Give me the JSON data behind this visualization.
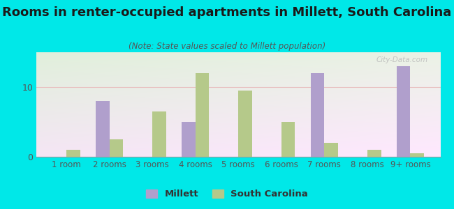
{
  "title": "Rooms in renter-occupied apartments in Millett, South Carolina",
  "subtitle": "(Note: State values scaled to Millett population)",
  "categories": [
    "1 room",
    "2 rooms",
    "3 rooms",
    "4 rooms",
    "5 rooms",
    "6 rooms",
    "7 rooms",
    "8 rooms",
    "9+ rooms"
  ],
  "millett_values": [
    0,
    8,
    0,
    5,
    0,
    0,
    12,
    0,
    13
  ],
  "sc_values": [
    1,
    2.5,
    6.5,
    12,
    9.5,
    5,
    2,
    1,
    0.5
  ],
  "millett_color": "#b09fcc",
  "sc_color": "#b5c98a",
  "background_outer": "#00e8e8",
  "ylim": [
    0,
    15
  ],
  "yticks": [
    0,
    10
  ],
  "bar_width": 0.32,
  "legend_labels": [
    "Millett",
    "South Carolina"
  ],
  "watermark": "City-Data.com",
  "title_fontsize": 13,
  "subtitle_fontsize": 8.5,
  "tick_fontsize": 8.5,
  "ytick_fontsize": 9
}
